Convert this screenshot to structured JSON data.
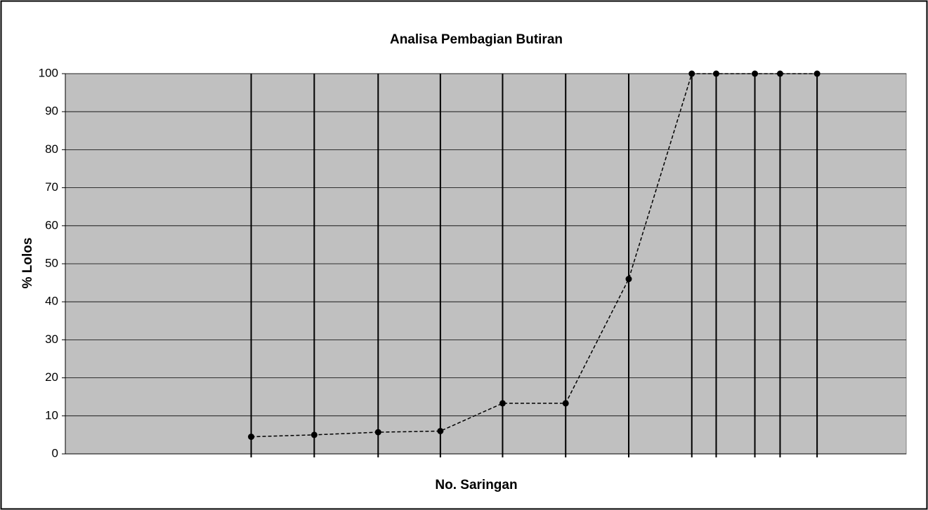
{
  "chart_data": {
    "type": "line",
    "title": "Analisa Pembagian Butiran",
    "xlabel": "No. Saringan",
    "ylabel": "% Lolos",
    "x": [
      22.1,
      29.6,
      37.2,
      44.6,
      52.0,
      59.5,
      67.0,
      74.5,
      77.4,
      82.0,
      85.0,
      89.4
    ],
    "xlim": [
      0,
      100
    ],
    "series": [
      {
        "name": null,
        "color": "#000000",
        "values": [
          4.5,
          5,
          5.7,
          6,
          13.3,
          13.3,
          46,
          100,
          100,
          100,
          100,
          100
        ]
      }
    ],
    "ylim": [
      0,
      100
    ],
    "yticks": [
      0,
      10,
      20,
      30,
      40,
      50,
      60,
      70,
      80,
      90,
      100
    ],
    "grid": true,
    "background": "#c0c0c0"
  }
}
